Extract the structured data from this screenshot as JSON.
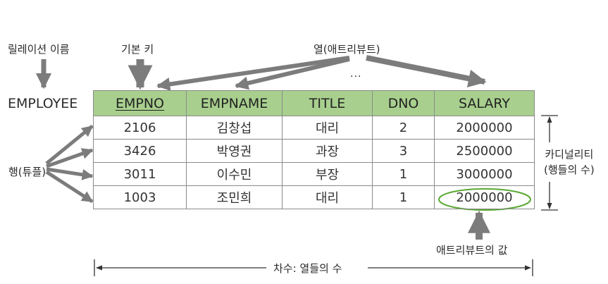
{
  "labels": {
    "relation_name": "릴레이션 이름",
    "primary_key": "기본 키",
    "attribute": "열(애트리뷰트)",
    "ellipsis": "...",
    "table_name": "EMPLOYEE",
    "tuple": "행(튜플)",
    "cardinality_line1": "카디널리티",
    "cardinality_line2": "(행들의 수)",
    "attribute_value": "애트리뷰트의 값",
    "degree": "차수: 열들의 수"
  },
  "table": {
    "headers": [
      "EMPNO",
      "EMPNAME",
      "TITLE",
      "DNO",
      "SALARY"
    ],
    "rows": [
      [
        "2106",
        "김창섭",
        "대리",
        "2",
        "2000000"
      ],
      [
        "3426",
        "박영권",
        "과장",
        "3",
        "2500000"
      ],
      [
        "3011",
        "이수민",
        "부장",
        "1",
        "3000000"
      ],
      [
        "1003",
        "조민희",
        "대리",
        "1",
        "2000000"
      ]
    ]
  },
  "colors": {
    "header_bg": "#a8cf8e",
    "arrow": "#7c7c7c",
    "highlight_ellipse": "#5aa832",
    "border": "#8a8a8a"
  }
}
